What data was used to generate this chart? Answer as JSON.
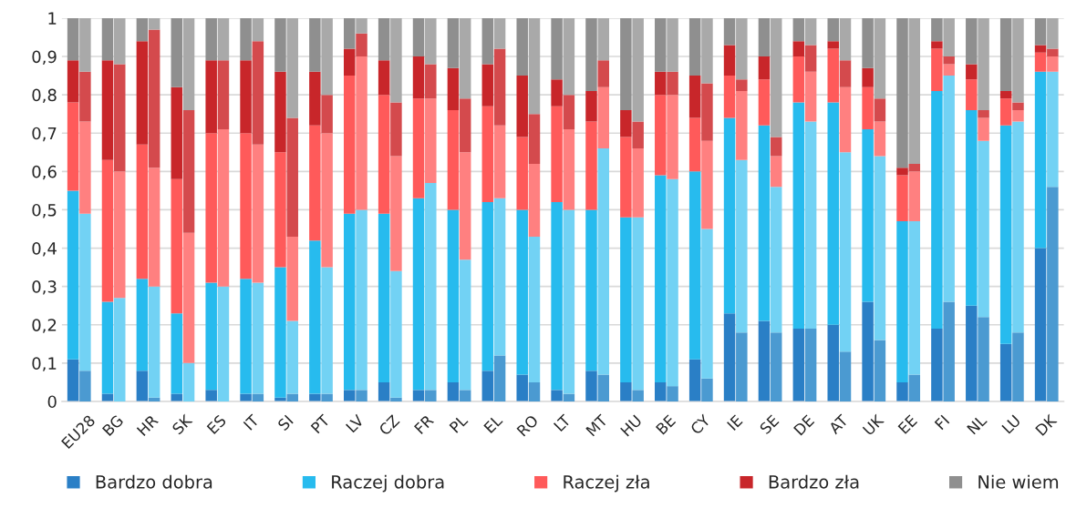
{
  "chart_data": [
    {
      "type": "bar",
      "stacked": true,
      "categories": [
        "EU28",
        "BG",
        "HR",
        "SK",
        "ES",
        "IT",
        "SI",
        "PT",
        "LV",
        "CZ",
        "FR",
        "PL",
        "EL",
        "RO",
        "LT",
        "MT",
        "HU",
        "BE",
        "CY",
        "IE",
        "SE",
        "DE",
        "AT",
        "UK",
        "EE",
        "FI",
        "NL",
        "LU",
        "DK"
      ],
      "series": [
        {
          "name": "Bardzo dobra",
          "color": "#2a7fc6",
          "values": [
            0.11,
            0.02,
            0.08,
            0.02,
            0.03,
            0.02,
            0.01,
            0.02,
            0.03,
            0.05,
            0.03,
            0.05,
            0.08,
            0.07,
            0.03,
            0.08,
            0.05,
            0.05,
            0.11,
            0.23,
            0.21,
            0.19,
            0.2,
            0.26,
            0.05,
            0.19,
            0.25,
            0.15,
            0.4
          ]
        },
        {
          "name": "Raczej dobra",
          "color": "#27bbee",
          "values": [
            0.44,
            0.24,
            0.24,
            0.21,
            0.28,
            0.3,
            0.34,
            0.4,
            0.46,
            0.44,
            0.5,
            0.45,
            0.44,
            0.43,
            0.49,
            0.42,
            0.43,
            0.54,
            0.49,
            0.51,
            0.51,
            0.59,
            0.58,
            0.45,
            0.42,
            0.62,
            0.51,
            0.57,
            0.46
          ]
        },
        {
          "name": "Raczej zła",
          "color": "#ff5a5a",
          "values": [
            0.23,
            0.37,
            0.35,
            0.35,
            0.39,
            0.38,
            0.3,
            0.3,
            0.36,
            0.31,
            0.26,
            0.26,
            0.25,
            0.19,
            0.25,
            0.23,
            0.21,
            0.21,
            0.14,
            0.11,
            0.12,
            0.12,
            0.14,
            0.11,
            0.12,
            0.11,
            0.08,
            0.07,
            0.05
          ]
        },
        {
          "name": "Bardzo zła",
          "color": "#c8262a",
          "values": [
            0.11,
            0.26,
            0.27,
            0.24,
            0.19,
            0.19,
            0.21,
            0.14,
            0.07,
            0.09,
            0.11,
            0.11,
            0.11,
            0.16,
            0.07,
            0.08,
            0.07,
            0.06,
            0.11,
            0.08,
            0.06,
            0.04,
            0.02,
            0.05,
            0.02,
            0.02,
            0.04,
            0.02,
            0.02
          ]
        },
        {
          "name": "Nie wiem",
          "color": "#8f8f8f",
          "values": [
            0.11,
            0.11,
            0.06,
            0.18,
            0.11,
            0.11,
            0.14,
            0.14,
            0.08,
            0.11,
            0.1,
            0.13,
            0.12,
            0.15,
            0.16,
            0.19,
            0.24,
            0.14,
            0.15,
            0.07,
            0.1,
            0.06,
            0.06,
            0.13,
            0.39,
            0.06,
            0.12,
            0.19,
            0.07
          ]
        }
      ],
      "ylim": [
        0,
        1
      ],
      "yticks": [
        0,
        {
          "value": 0.1,
          "label": "0,1"
        },
        {
          "value": 0.2,
          "label": "0,2"
        },
        {
          "value": 0.3,
          "label": "0,3"
        },
        {
          "value": 0.4,
          "label": "0,4"
        },
        {
          "value": 0.5,
          "label": "0,5"
        },
        {
          "value": 0.6,
          "label": "0,6"
        },
        {
          "value": 0.7,
          "label": "0,7"
        },
        {
          "value": 0.8,
          "label": "0,8"
        },
        {
          "value": 0.9,
          "label": "0,9"
        },
        1
      ],
      "grid": "y",
      "legend": "bottom"
    },
    {
      "type": "bar",
      "stacked": true,
      "categories": [
        null,
        null,
        null,
        null,
        null,
        null,
        null,
        null,
        null,
        null,
        null,
        null,
        null,
        null,
        null,
        null,
        null,
        null,
        null,
        null,
        null,
        null,
        null,
        null,
        null,
        null,
        null,
        null,
        null
      ],
      "series": [
        {
          "color": "#4b9ad1",
          "values": [
            0.08,
            0,
            0.01,
            0,
            0,
            0.02,
            0.02,
            0.02,
            0.03,
            0.01,
            0.03,
            0.03,
            0.12,
            0.05,
            0.02,
            0.07,
            0.03,
            0.04,
            0.06,
            0.18,
            0.18,
            0.19,
            0.13,
            0.16,
            0.07,
            0.26,
            0.22,
            0.18,
            0.56
          ]
        },
        {
          "color": "#72d2f4",
          "values": [
            0.41,
            0.27,
            0.29,
            0.1,
            0.3,
            0.29,
            0.19,
            0.33,
            0.47,
            0.33,
            0.54,
            0.34,
            0.41,
            0.38,
            0.48,
            0.59,
            0.45,
            0.54,
            0.39,
            0.45,
            0.38,
            0.54,
            0.52,
            0.48,
            0.4,
            0.59,
            0.46,
            0.55,
            0.3
          ]
        },
        {
          "color": "#ff8080",
          "values": [
            0.24,
            0.33,
            0.31,
            0.34,
            0.41,
            0.36,
            0.22,
            0.35,
            0.4,
            0.3,
            0.22,
            0.28,
            0.19,
            0.19,
            0.21,
            0.16,
            0.18,
            0.22,
            0.23,
            0.18,
            0.08,
            0.13,
            0.17,
            0.09,
            0.13,
            0.03,
            0.06,
            0.03,
            0.04
          ]
        },
        {
          "color": "#d44a4d",
          "values": [
            0.13,
            0.28,
            0.36,
            0.32,
            0.18,
            0.27,
            0.31,
            0.1,
            0.06,
            0.14,
            0.09,
            0.14,
            0.2,
            0.13,
            0.09,
            0.07,
            0.07,
            0.06,
            0.15,
            0.03,
            0.05,
            0.07,
            0.07,
            0.06,
            0.02,
            0.02,
            0.02,
            0.02,
            0.02
          ]
        },
        {
          "color": "#a9a9a9",
          "values": [
            0.14,
            0.12,
            0.03,
            0.24,
            0.11,
            0.06,
            0.26,
            0.2,
            0.04,
            0.22,
            0.12,
            0.21,
            0.08,
            0.25,
            0.2,
            0.11,
            0.27,
            0.14,
            0.17,
            0.16,
            0.31,
            0.07,
            0.11,
            0.21,
            0.38,
            0.1,
            0.24,
            0.22,
            0.08
          ]
        }
      ],
      "ylim": [
        0,
        1
      ]
    }
  ]
}
